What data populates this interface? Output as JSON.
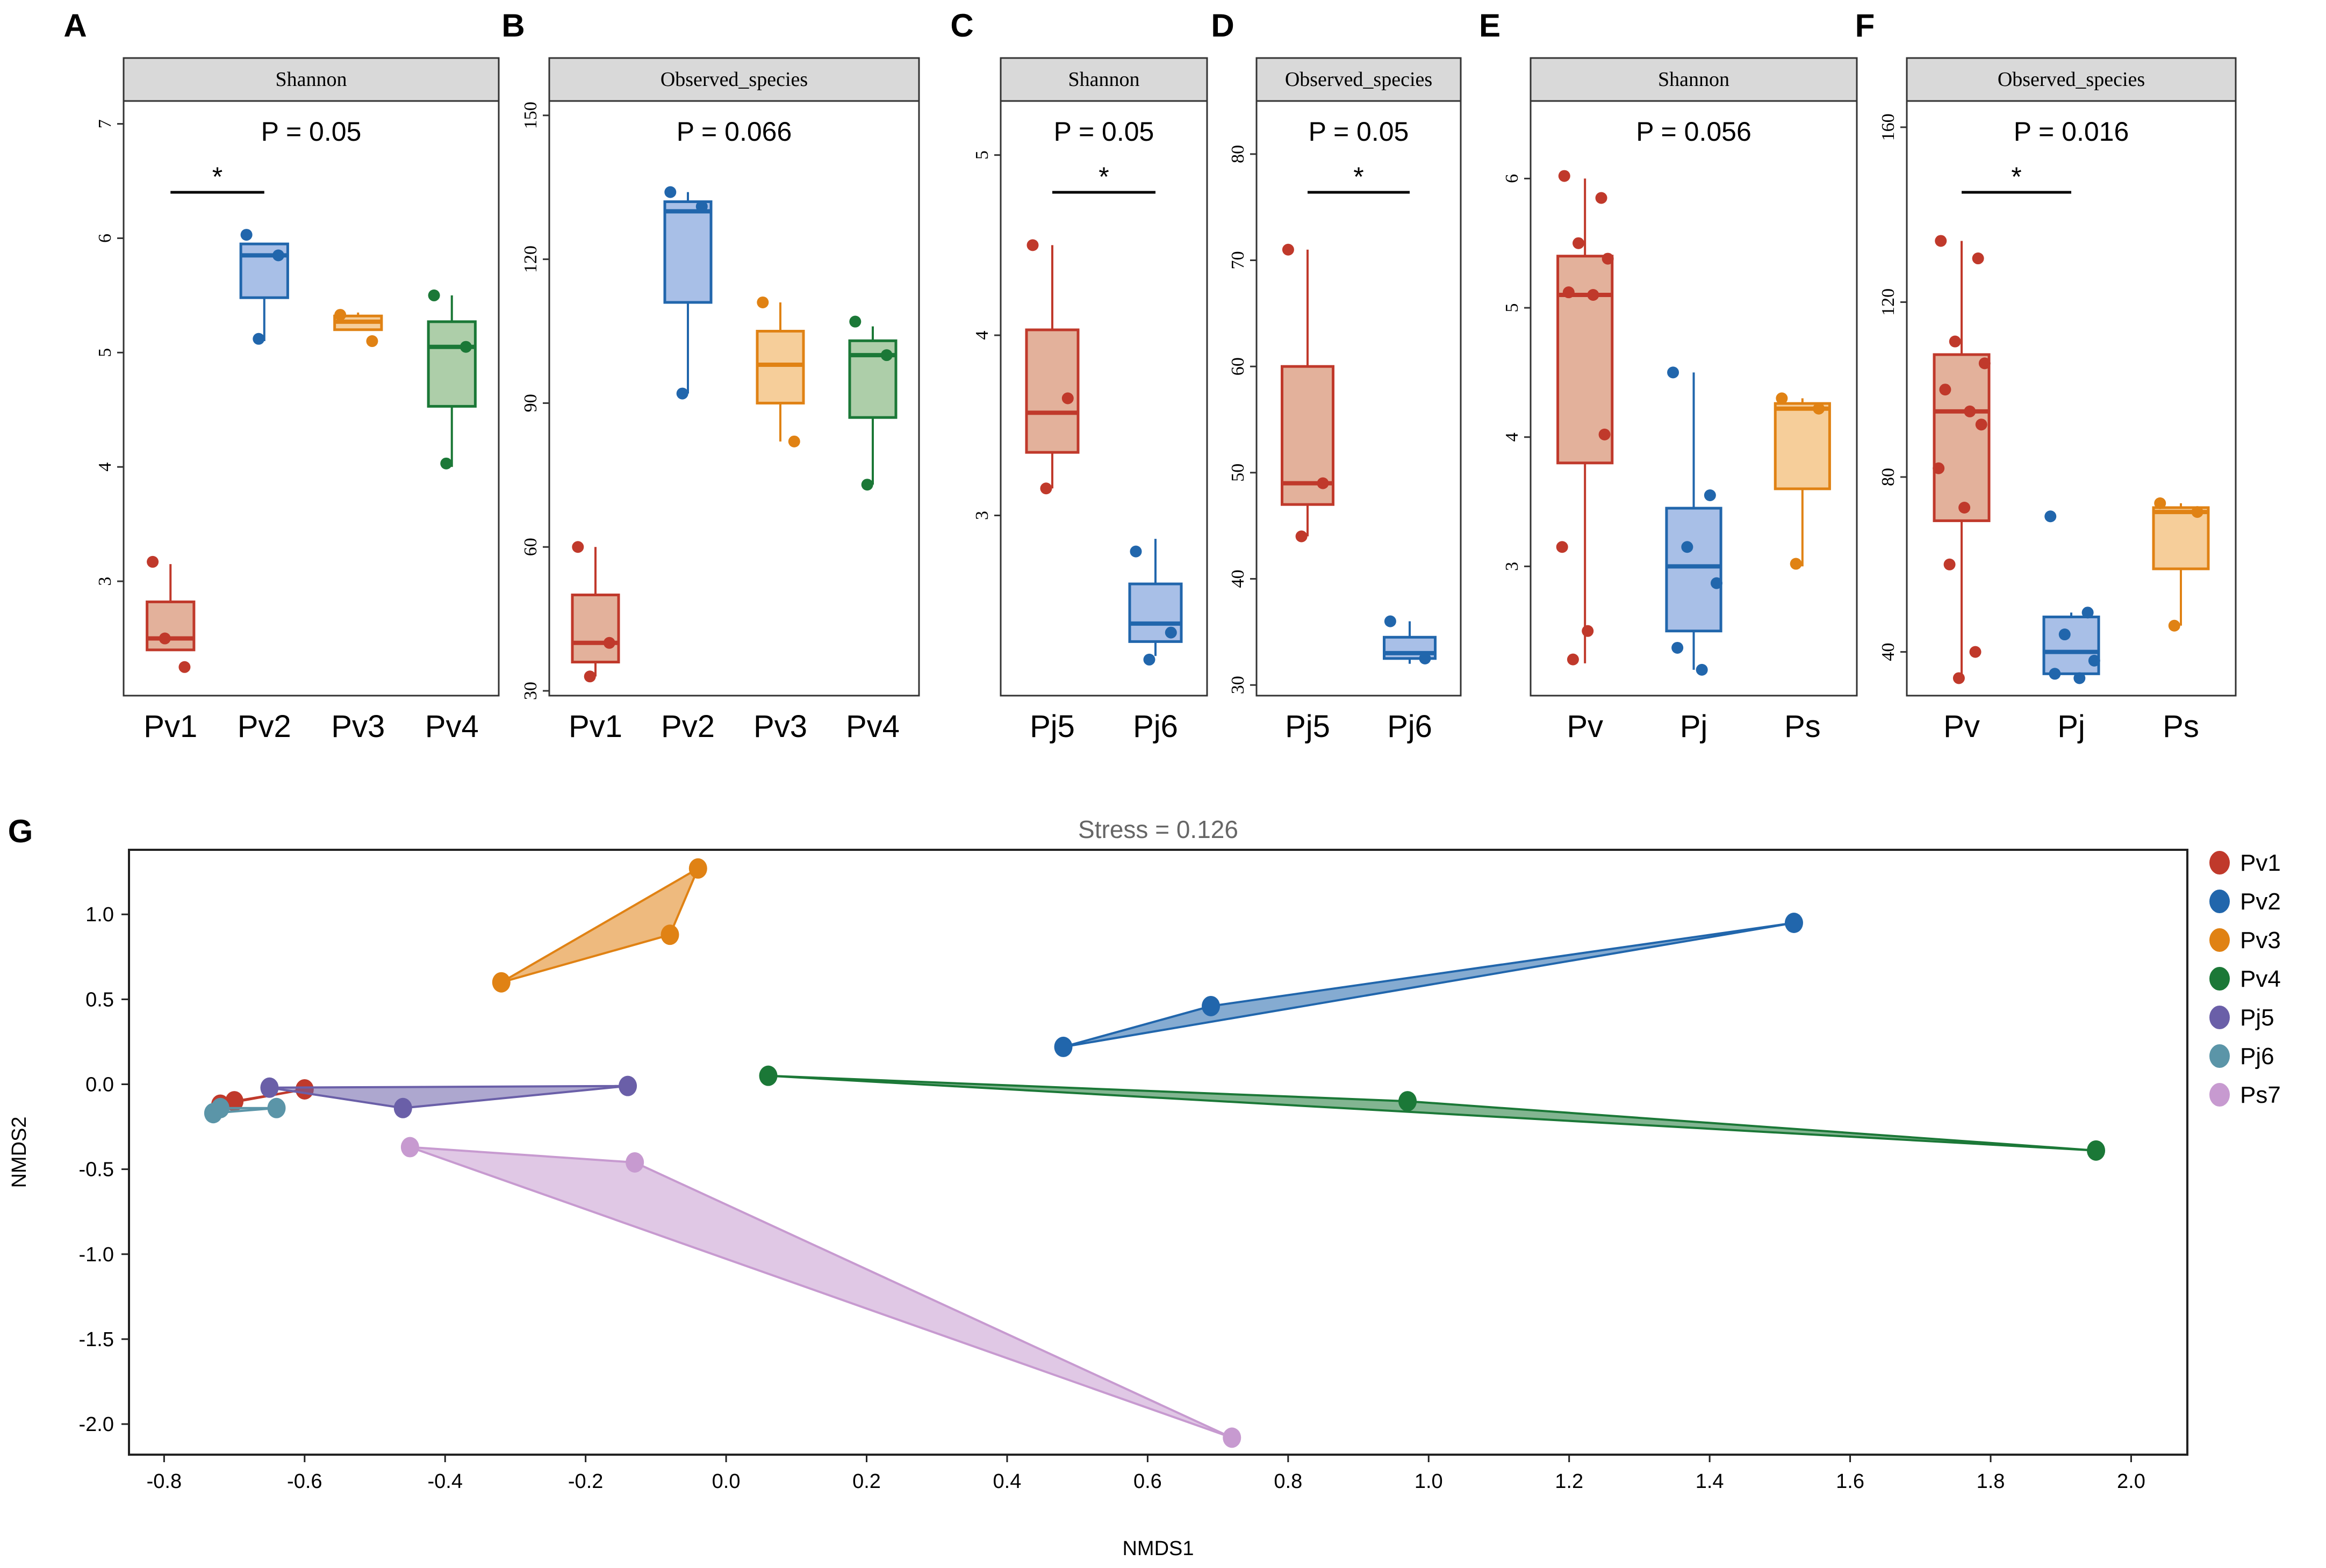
{
  "chart_data": [
    {
      "panel": "A",
      "type": "box",
      "facet": "Shannon",
      "pvalue_label": "P = 0.05",
      "ylim": [
        2.0,
        7.2
      ],
      "yticks": [
        3,
        4,
        5,
        6,
        7
      ],
      "significance": {
        "from": "Pv1",
        "to": "Pv2",
        "mark": "*",
        "y": 6.4
      },
      "groups": [
        {
          "name": "Pv1",
          "color": "#c0392b",
          "fill": "#e0a890",
          "q1": 2.4,
          "median": 2.5,
          "q3": 2.82,
          "wlow": 2.4,
          "whigh": 3.15,
          "points": [
            3.17,
            2.25,
            2.5
          ]
        },
        {
          "name": "Pv2",
          "color": "#2166ac",
          "fill": "#9fb8e4",
          "q1": 5.48,
          "median": 5.85,
          "q3": 5.95,
          "wlow": 5.1,
          "whigh": 5.95,
          "points": [
            6.03,
            5.85,
            5.12
          ]
        },
        {
          "name": "Pv3",
          "color": "#e08214",
          "fill": "#f5c98f",
          "q1": 5.2,
          "median": 5.27,
          "q3": 5.32,
          "wlow": 5.2,
          "whigh": 5.35,
          "points": [
            5.33,
            5.1
          ]
        },
        {
          "name": "Pv4",
          "color": "#1b7837",
          "fill": "#a4c9a0",
          "q1": 4.53,
          "median": 5.05,
          "q3": 5.27,
          "wlow": 4.0,
          "whigh": 5.5,
          "points": [
            5.5,
            5.05,
            4.03
          ]
        }
      ]
    },
    {
      "panel": "B",
      "type": "box",
      "facet": "Observed_species",
      "pvalue_label": "P = 0.066",
      "ylim": [
        29,
        153
      ],
      "yticks": [
        30,
        60,
        90,
        120,
        150
      ],
      "groups": [
        {
          "name": "Pv1",
          "color": "#c0392b",
          "fill": "#e0a890",
          "q1": 36,
          "median": 40,
          "q3": 50,
          "wlow": 33,
          "whigh": 60,
          "points": [
            60,
            40,
            33
          ]
        },
        {
          "name": "Pv2",
          "color": "#2166ac",
          "fill": "#9fb8e4",
          "q1": 111,
          "median": 130,
          "q3": 132,
          "wlow": 92,
          "whigh": 134,
          "points": [
            134,
            131,
            92
          ]
        },
        {
          "name": "Pv3",
          "color": "#e08214",
          "fill": "#f5c98f",
          "q1": 90,
          "median": 98,
          "q3": 105,
          "wlow": 82,
          "whigh": 111,
          "points": [
            111,
            82
          ]
        },
        {
          "name": "Pv4",
          "color": "#1b7837",
          "fill": "#a4c9a0",
          "q1": 87,
          "median": 100,
          "q3": 103,
          "wlow": 73,
          "whigh": 106,
          "points": [
            107,
            100,
            73
          ]
        }
      ]
    },
    {
      "panel": "C",
      "type": "box",
      "facet": "Shannon",
      "pvalue_label": "P = 0.05",
      "ylim": [
        2.0,
        5.3
      ],
      "yticks": [
        3,
        4,
        5
      ],
      "significance": {
        "from": "Pj5",
        "to": "Pj6",
        "mark": "*",
        "y": 4.5
      },
      "groups": [
        {
          "name": "Pj5",
          "color": "#c0392b",
          "fill": "#e0a890",
          "q1": 3.35,
          "median": 3.57,
          "q3": 4.03,
          "wlow": 3.15,
          "whigh": 4.5,
          "points": [
            4.5,
            3.65,
            3.15
          ]
        },
        {
          "name": "Pj6",
          "color": "#2166ac",
          "fill": "#9fb8e4",
          "q1": 2.3,
          "median": 2.4,
          "q3": 2.62,
          "wlow": 2.22,
          "whigh": 2.87,
          "points": [
            2.8,
            2.35,
            2.2
          ]
        }
      ]
    },
    {
      "panel": "D",
      "type": "box",
      "facet": "Observed_species",
      "pvalue_label": "P = 0.05",
      "ylim": [
        29,
        85
      ],
      "yticks": [
        30,
        40,
        50,
        60,
        70,
        80
      ],
      "significance": {
        "from": "Pj5",
        "to": "Pj6",
        "mark": "*",
        "y": 75
      },
      "groups": [
        {
          "name": "Pj5",
          "color": "#c0392b",
          "fill": "#e0a890",
          "q1": 47,
          "median": 49,
          "q3": 60,
          "wlow": 44,
          "whigh": 71,
          "points": [
            71,
            49,
            44
          ]
        },
        {
          "name": "Pj6",
          "color": "#2166ac",
          "fill": "#9fb8e4",
          "q1": 32.5,
          "median": 33,
          "q3": 34.5,
          "wlow": 32,
          "whigh": 36,
          "points": [
            36,
            32.5
          ]
        }
      ]
    },
    {
      "panel": "E",
      "type": "box",
      "facet": "Shannon",
      "pvalue_label": "P = 0.056",
      "ylim": [
        2.0,
        6.6
      ],
      "yticks": [
        3,
        4,
        5,
        6
      ],
      "groups": [
        {
          "name": "Pv",
          "color": "#c0392b",
          "fill": "#e0a890",
          "q1": 3.8,
          "median": 5.1,
          "q3": 5.4,
          "wlow": 2.25,
          "whigh": 6.0,
          "points": [
            6.02,
            5.85,
            5.5,
            5.38,
            5.12,
            5.1,
            4.02,
            3.15,
            2.5,
            2.28
          ]
        },
        {
          "name": "Pj",
          "color": "#2166ac",
          "fill": "#9fb8e4",
          "q1": 2.5,
          "median": 3.0,
          "q3": 3.45,
          "wlow": 2.2,
          "whigh": 4.5,
          "points": [
            4.5,
            3.55,
            3.15,
            2.87,
            2.37,
            2.2
          ]
        },
        {
          "name": "Ps",
          "color": "#e08214",
          "fill": "#f5c98f",
          "q1": 3.6,
          "median": 4.22,
          "q3": 4.26,
          "wlow": 3.0,
          "whigh": 4.3,
          "points": [
            4.3,
            4.22,
            3.02
          ]
        }
      ]
    },
    {
      "panel": "F",
      "type": "box",
      "facet": "Observed_species",
      "pvalue_label": "P = 0.016",
      "ylim": [
        30,
        166
      ],
      "yticks": [
        40,
        80,
        120,
        160
      ],
      "significance": {
        "from": "Pv",
        "to": "Pj",
        "mark": "*",
        "y": 150
      },
      "groups": [
        {
          "name": "Pv",
          "color": "#c0392b",
          "fill": "#e0a890",
          "q1": 70,
          "median": 95,
          "q3": 108,
          "wlow": 34,
          "whigh": 134,
          "points": [
            134,
            130,
            111,
            106,
            100,
            95,
            92,
            82,
            73,
            60,
            40,
            34
          ]
        },
        {
          "name": "Pj",
          "color": "#2166ac",
          "fill": "#9fb8e4",
          "q1": 35,
          "median": 40,
          "q3": 48,
          "wlow": 35,
          "whigh": 49,
          "points": [
            71,
            49,
            44,
            38,
            35,
            34
          ]
        },
        {
          "name": "Ps",
          "color": "#e08214",
          "fill": "#f5c98f",
          "q1": 59,
          "median": 72,
          "q3": 73,
          "wlow": 46,
          "whigh": 74,
          "points": [
            74,
            72,
            46
          ]
        }
      ]
    },
    {
      "panel": "G",
      "type": "scatter",
      "title": "Stress = 0.126",
      "xlabel": "NMDS1",
      "ylabel": "NMDS2",
      "xlim": [
        -0.85,
        2.08
      ],
      "ylim": [
        -2.18,
        1.38
      ],
      "xticks": [
        "-0.8",
        "-0.6",
        "-0.4",
        "-0.2",
        "0.0",
        "0.2",
        "0.4",
        "0.6",
        "0.8",
        "1.0",
        "1.2",
        "1.4",
        "1.6",
        "1.8",
        "2.0"
      ],
      "yticks": [
        "1.0",
        "0.5",
        "0.0",
        "-0.5",
        "-1.0",
        "-1.5",
        "-2.0"
      ],
      "legend_position": "right",
      "series": [
        {
          "name": "Pv1",
          "color": "#c0392b",
          "points": [
            [
              -0.72,
              -0.12
            ],
            [
              -0.7,
              -0.1
            ],
            [
              -0.6,
              -0.03
            ]
          ]
        },
        {
          "name": "Pv2",
          "color": "#2166ac",
          "points": [
            [
              0.48,
              0.22
            ],
            [
              0.69,
              0.46
            ],
            [
              1.52,
              0.95
            ]
          ]
        },
        {
          "name": "Pv3",
          "color": "#e08214",
          "points": [
            [
              -0.32,
              0.6
            ],
            [
              -0.08,
              0.88
            ],
            [
              -0.04,
              1.27
            ]
          ]
        },
        {
          "name": "Pv4",
          "color": "#1b7837",
          "points": [
            [
              0.06,
              0.05
            ],
            [
              0.97,
              -0.1
            ],
            [
              1.95,
              -0.39
            ]
          ]
        },
        {
          "name": "Pj5",
          "color": "#6a5fa8",
          "points": [
            [
              -0.65,
              -0.02
            ],
            [
              -0.46,
              -0.14
            ],
            [
              -0.14,
              -0.01
            ]
          ]
        },
        {
          "name": "Pj6",
          "color": "#5b95a8",
          "points": [
            [
              -0.73,
              -0.17
            ],
            [
              -0.64,
              -0.14
            ],
            [
              -0.72,
              -0.14
            ]
          ]
        },
        {
          "name": "Ps7",
          "color": "#c79ad0",
          "points": [
            [
              -0.45,
              -0.37
            ],
            [
              -0.13,
              -0.46
            ],
            [
              0.72,
              -2.08
            ]
          ]
        }
      ]
    }
  ]
}
